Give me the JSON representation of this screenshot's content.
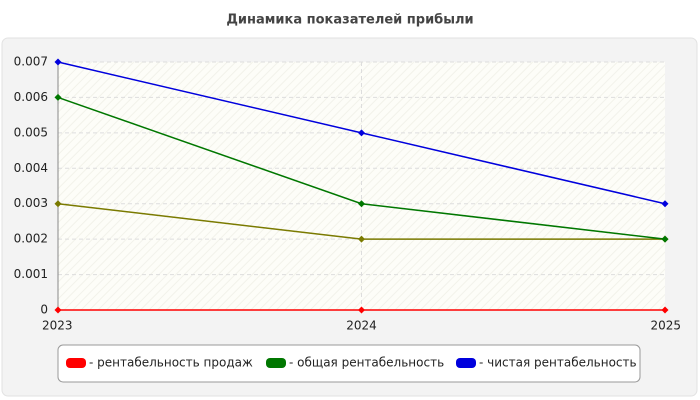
{
  "chart_data": {
    "type": "line",
    "title": "Динамика показателей прибыли",
    "categories": [
      "2023",
      "2024",
      "2025"
    ],
    "series": [
      {
        "name": "- рентабельность продаж",
        "color": "#ff0000",
        "values": [
          0,
          0,
          0
        ]
      },
      {
        "name": "- общая рентабельность",
        "color": "#007700",
        "values": [
          0.006,
          0.003,
          0.002
        ]
      },
      {
        "name": "- чистая рентабельность",
        "color": "#0000dd",
        "values": [
          0.007,
          0.005,
          0.003
        ]
      },
      {
        "color": "#7a7a00",
        "values": [
          0.003,
          0.002,
          0.002
        ]
      }
    ],
    "ylim": [
      0,
      0.007
    ],
    "yticks": [
      0,
      0.001,
      0.002,
      0.003,
      0.004,
      0.005,
      0.006,
      0.007
    ],
    "grid": true
  }
}
